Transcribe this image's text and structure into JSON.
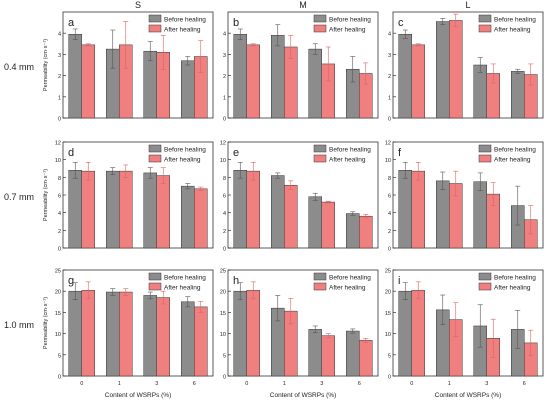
{
  "figure": {
    "column_titles": [
      "S",
      "M",
      "L"
    ],
    "row_labels": [
      "0.4 mm",
      "0.7 mm",
      "1.0 mm"
    ],
    "ylabel": "Permeability (cm·s⁻¹)",
    "xlabel": "Content of WSRPs (%)",
    "legend": [
      "Before healing",
      "After healing"
    ],
    "colors": {
      "before": "#8c8c8c",
      "after": "#f08080",
      "edge": "#333333"
    }
  },
  "chart_data": [
    {
      "type": "bar",
      "panel": "a",
      "categories": [
        "0",
        "1",
        "3",
        "6"
      ],
      "ylim": [
        0,
        5
      ],
      "yticks": [
        0,
        1,
        2,
        3,
        4
      ],
      "series": [
        {
          "name": "Before healing",
          "values": [
            3.95,
            3.25,
            3.15,
            2.7
          ],
          "errors": [
            0.25,
            0.9,
            0.45,
            0.2
          ]
        },
        {
          "name": "After healing",
          "values": [
            3.45,
            3.45,
            3.1,
            2.9
          ],
          "errors": [
            0.05,
            1.1,
            0.8,
            0.75
          ]
        }
      ]
    },
    {
      "type": "bar",
      "panel": "b",
      "categories": [
        "0",
        "1",
        "3",
        "6"
      ],
      "ylim": [
        0,
        5
      ],
      "yticks": [
        0,
        1,
        2,
        3,
        4
      ],
      "series": [
        {
          "name": "Before healing",
          "values": [
            3.95,
            3.9,
            3.25,
            2.3
          ],
          "errors": [
            0.25,
            0.5,
            0.25,
            0.6
          ]
        },
        {
          "name": "After healing",
          "values": [
            3.45,
            3.35,
            2.55,
            2.1
          ],
          "errors": [
            0.05,
            0.55,
            0.8,
            0.5
          ]
        }
      ]
    },
    {
      "type": "bar",
      "panel": "c",
      "categories": [
        "0",
        "1",
        "3",
        "6"
      ],
      "ylim": [
        0,
        5
      ],
      "yticks": [
        0,
        1,
        2,
        3,
        4
      ],
      "series": [
        {
          "name": "Before healing",
          "values": [
            3.95,
            4.55,
            2.5,
            2.2
          ],
          "errors": [
            0.2,
            0.15,
            0.35,
            0.1
          ]
        },
        {
          "name": "After healing",
          "values": [
            3.45,
            4.6,
            2.1,
            2.05
          ],
          "errors": [
            0.05,
            0.3,
            0.45,
            0.5
          ]
        }
      ]
    },
    {
      "type": "bar",
      "panel": "d",
      "categories": [
        "0",
        "1",
        "3",
        "6"
      ],
      "ylim": [
        0,
        12
      ],
      "yticks": [
        0,
        2,
        4,
        6,
        8,
        10,
        12
      ],
      "series": [
        {
          "name": "Before healing",
          "values": [
            8.8,
            8.7,
            8.5,
            7.0
          ],
          "errors": [
            0.9,
            0.4,
            0.6,
            0.3
          ]
        },
        {
          "name": "After healing",
          "values": [
            8.7,
            8.7,
            8.2,
            6.7
          ],
          "errors": [
            1.0,
            0.7,
            0.9,
            0.2
          ]
        }
      ]
    },
    {
      "type": "bar",
      "panel": "e",
      "categories": [
        "0",
        "1",
        "3",
        "6"
      ],
      "ylim": [
        0,
        12
      ],
      "yticks": [
        0,
        2,
        4,
        6,
        8,
        10,
        12
      ],
      "series": [
        {
          "name": "Before healing",
          "values": [
            8.8,
            8.2,
            5.8,
            3.9
          ],
          "errors": [
            0.9,
            0.3,
            0.4,
            0.2
          ]
        },
        {
          "name": "After healing",
          "values": [
            8.7,
            7.1,
            5.2,
            3.6
          ],
          "errors": [
            1.0,
            0.5,
            0.1,
            0.2
          ]
        }
      ]
    },
    {
      "type": "bar",
      "panel": "f",
      "categories": [
        "0",
        "1",
        "3",
        "6"
      ],
      "ylim": [
        0,
        12
      ],
      "yticks": [
        0,
        2,
        4,
        6,
        8,
        10,
        12
      ],
      "series": [
        {
          "name": "Before healing",
          "values": [
            8.8,
            7.6,
            7.5,
            4.8
          ],
          "errors": [
            0.9,
            1.0,
            1.0,
            2.2
          ]
        },
        {
          "name": "After healing",
          "values": [
            8.7,
            7.3,
            6.1,
            3.2
          ],
          "errors": [
            1.0,
            1.4,
            1.3,
            1.6
          ]
        }
      ]
    },
    {
      "type": "bar",
      "panel": "g",
      "categories": [
        "0",
        "1",
        "3",
        "6"
      ],
      "ylim": [
        0,
        25
      ],
      "yticks": [
        0,
        5,
        10,
        15,
        20,
        25
      ],
      "series": [
        {
          "name": "Before healing",
          "values": [
            20.0,
            19.8,
            19.0,
            17.5
          ],
          "errors": [
            2.0,
            0.8,
            0.8,
            1.2
          ]
        },
        {
          "name": "After healing",
          "values": [
            20.2,
            19.8,
            18.5,
            16.3
          ],
          "errors": [
            2.0,
            0.8,
            1.5,
            1.3
          ]
        }
      ]
    },
    {
      "type": "bar",
      "panel": "h",
      "categories": [
        "0",
        "1",
        "3",
        "6"
      ],
      "ylim": [
        0,
        25
      ],
      "yticks": [
        0,
        5,
        10,
        15,
        20,
        25
      ],
      "series": [
        {
          "name": "Before healing",
          "values": [
            20.0,
            16.0,
            11.0,
            10.6
          ],
          "errors": [
            2.0,
            3.0,
            0.8,
            0.5
          ]
        },
        {
          "name": "After healing",
          "values": [
            20.2,
            15.3,
            9.5,
            8.4
          ],
          "errors": [
            2.0,
            3.0,
            0.5,
            0.5
          ]
        }
      ]
    },
    {
      "type": "bar",
      "panel": "i",
      "categories": [
        "0",
        "1",
        "3",
        "6"
      ],
      "ylim": [
        0,
        25
      ],
      "yticks": [
        0,
        5,
        10,
        15,
        20,
        25
      ],
      "series": [
        {
          "name": "Before healing",
          "values": [
            20.0,
            15.6,
            11.8,
            11.0
          ],
          "errors": [
            2.0,
            3.5,
            5.0,
            4.5
          ]
        },
        {
          "name": "After healing",
          "values": [
            20.2,
            13.3,
            8.9,
            7.8
          ],
          "errors": [
            2.0,
            4.0,
            4.5,
            3.0
          ]
        }
      ]
    }
  ]
}
